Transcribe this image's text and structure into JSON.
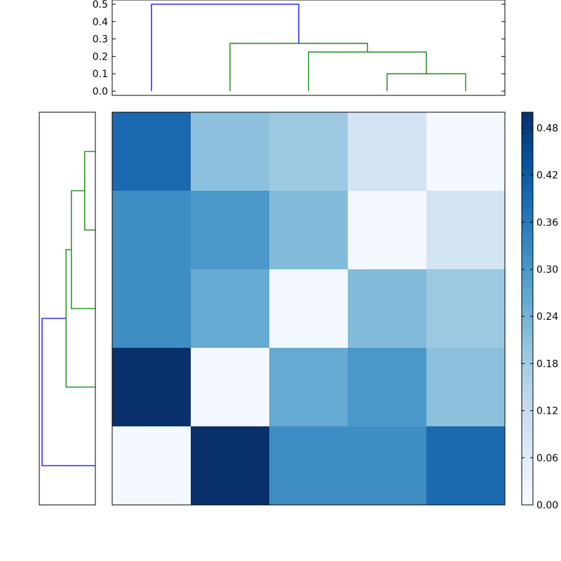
{
  "chart_data": [
    {
      "type": "dendrogram",
      "orientation": "top",
      "ylim": [
        0,
        0.5
      ],
      "yticks": [
        0.0,
        0.1,
        0.2,
        0.3,
        0.4,
        0.5
      ],
      "ytick_labels": [
        "0.0",
        "0.1",
        "0.2",
        "0.3",
        "0.4",
        "0.5"
      ],
      "leaf_count": 5,
      "links": [
        {
          "a": 3.0,
          "b": 4.0,
          "height": 0.1,
          "color": "#008000"
        },
        {
          "a": 2.0,
          "b": 3.5,
          "height": 0.225,
          "color": "#008000"
        },
        {
          "a": 1.0,
          "b": 2.75,
          "height": 0.275,
          "color": "#008000"
        },
        {
          "a": 0.0,
          "b": 1.875,
          "height": 0.5,
          "color": "#0000ff"
        }
      ]
    },
    {
      "type": "dendrogram",
      "orientation": "left",
      "leaf_count": 5,
      "links": [
        {
          "a": 3.0,
          "b": 4.0,
          "height": 0.1,
          "color": "#008000"
        },
        {
          "a": 2.0,
          "b": 3.5,
          "height": 0.225,
          "color": "#008000"
        },
        {
          "a": 1.0,
          "b": 2.75,
          "height": 0.275,
          "color": "#008000"
        },
        {
          "a": 0.0,
          "b": 1.875,
          "height": 0.5,
          "color": "#0000ff"
        }
      ]
    },
    {
      "type": "heatmap",
      "rows": 5,
      "cols": 5,
      "values": [
        [
          0.39,
          0.21,
          0.19,
          0.09,
          0.01
        ],
        [
          0.32,
          0.3,
          0.22,
          0.01,
          0.09
        ],
        [
          0.32,
          0.26,
          0.01,
          0.22,
          0.19
        ],
        [
          0.5,
          0.01,
          0.26,
          0.3,
          0.21
        ],
        [
          0.01,
          0.5,
          0.32,
          0.32,
          0.39
        ]
      ],
      "colormap": "Blues",
      "vmin": 0,
      "vmax": 0.5
    },
    {
      "type": "colorbar",
      "colormap": "Blues",
      "vmin": 0,
      "vmax": 0.5,
      "ticks": [
        0.0,
        0.06,
        0.12,
        0.18,
        0.24,
        0.3,
        0.36,
        0.42,
        0.48
      ],
      "tick_labels": [
        "0.00",
        "0.06",
        "0.12",
        "0.18",
        "0.24",
        "0.30",
        "0.36",
        "0.42",
        "0.48"
      ]
    }
  ]
}
